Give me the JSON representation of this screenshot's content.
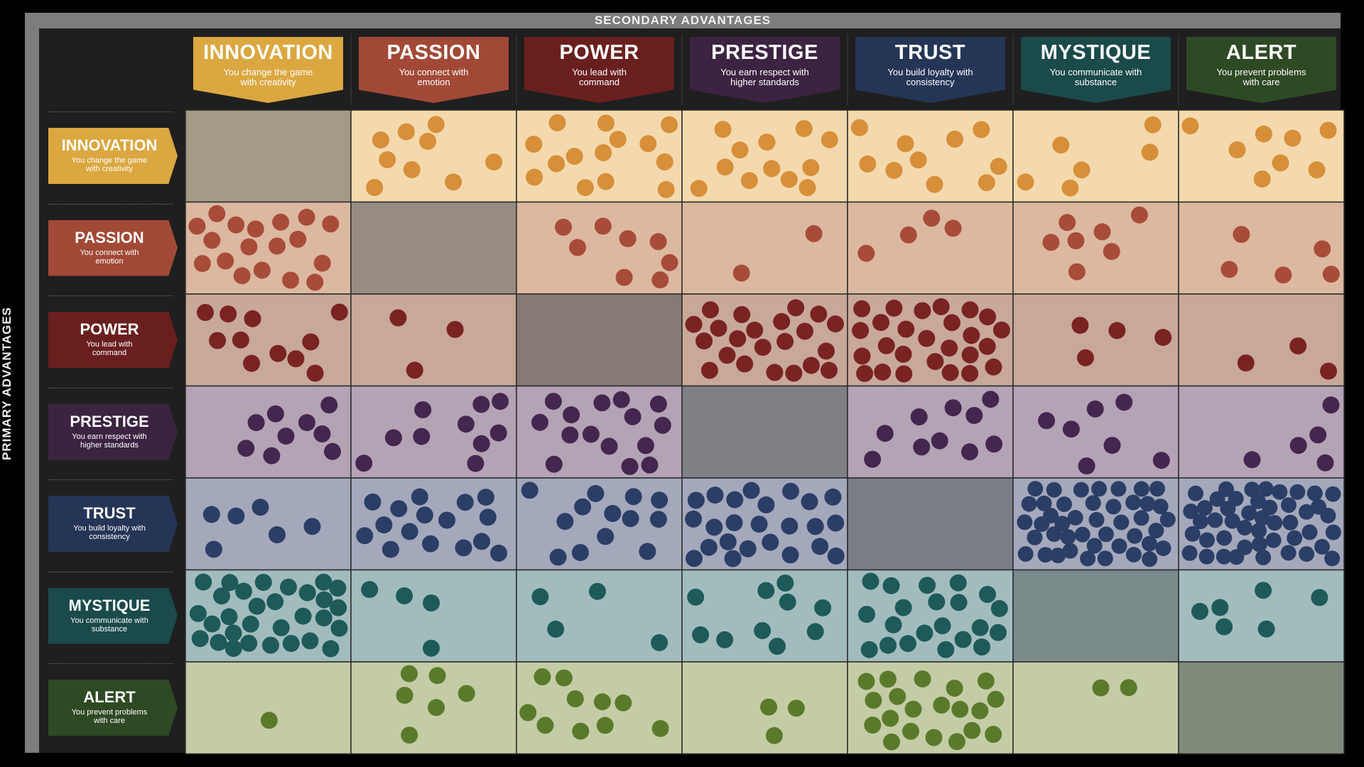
{
  "secondary_label": "SECONDARY ADVANTAGES",
  "primary_label": "PRIMARY ADVANTAGES",
  "advantages": [
    {
      "name": "INNOVATION",
      "desc": "You change the game with creativity",
      "color": "#dba740"
    },
    {
      "name": "PASSION",
      "desc": "You connect with emotion",
      "color": "#a14936"
    },
    {
      "name": "POWER",
      "desc": "You lead with command",
      "color": "#6a1f1f"
    },
    {
      "name": "PRESTIGE",
      "desc": "You earn respect with higher standards",
      "color": "#3c2341"
    },
    {
      "name": "TRUST",
      "desc": "You build loyalty with consistency",
      "color": "#253556"
    },
    {
      "name": "MYSTIQUE",
      "desc": "You communicate with substance",
      "color": "#1b4a4b"
    },
    {
      "name": "ALERT",
      "desc": "You prevent problems with care",
      "color": "#2e4a24"
    }
  ],
  "row_headers": [
    {
      "name": "INNOVATION",
      "desc": "You change the game with creativity"
    },
    {
      "name": "PASSION",
      "desc": "You connect with emotion"
    },
    {
      "name": "POWER",
      "desc": "You lead with command"
    },
    {
      "name": "PRESTIGE",
      "desc": "You earn respect with higher standards"
    },
    {
      "name": "TRUST",
      "desc": "You build loyalty with consistency"
    },
    {
      "name": "MYSTIQUE",
      "desc": "You communicate with substance"
    },
    {
      "name": "ALERT",
      "desc": "You prevent problems with care"
    }
  ],
  "row_colors": [
    {
      "bg": "#f3d9ad",
      "dot": "#d78f39"
    },
    {
      "bg": "#dcb8a0",
      "dot": "#a84c3a"
    },
    {
      "bg": "#c8a897",
      "dot": "#7a2323"
    },
    {
      "bg": "#b3a3b5",
      "dot": "#45264f"
    },
    {
      "bg": "#a4a8bb",
      "dot": "#2b3e66"
    },
    {
      "bg": "#a2bcbd",
      "dot": "#1e5a5a"
    },
    {
      "bg": "#c4cca6",
      "dot": "#5a7a2b"
    }
  ],
  "diagonal_colors": [
    "#a49b86",
    "#978c82",
    "#867a74",
    "#7f7f86",
    "#797d86",
    "#7b8a8a",
    "#7f8a7b"
  ],
  "chart_data": {
    "type": "heatmap",
    "encoding": "dot count",
    "rows": [
      "INNOVATION",
      "PASSION",
      "POWER",
      "PRESTIGE",
      "TRUST",
      "MYSTIQUE",
      "ALERT"
    ],
    "columns": [
      "INNOVATION",
      "PASSION",
      "POWER",
      "PRESTIGE",
      "TRUST",
      "MYSTIQUE",
      "ALERT"
    ],
    "row_axis_label": "PRIMARY ADVANTAGES",
    "column_axis_label": "SECONDARY ADVANTAGES",
    "values": [
      [
        null,
        9,
        14,
        12,
        10,
        6,
        8
      ],
      [
        18,
        null,
        8,
        2,
        4,
        7,
        5
      ],
      [
        11,
        3,
        null,
        22,
        26,
        4,
        3
      ],
      [
        9,
        10,
        15,
        null,
        10,
        7,
        5
      ],
      [
        6,
        16,
        13,
        24,
        null,
        43,
        46
      ],
      [
        30,
        4,
        4,
        10,
        21,
        null,
        6
      ],
      [
        1,
        6,
        10,
        3,
        20,
        2,
        null
      ]
    ]
  }
}
